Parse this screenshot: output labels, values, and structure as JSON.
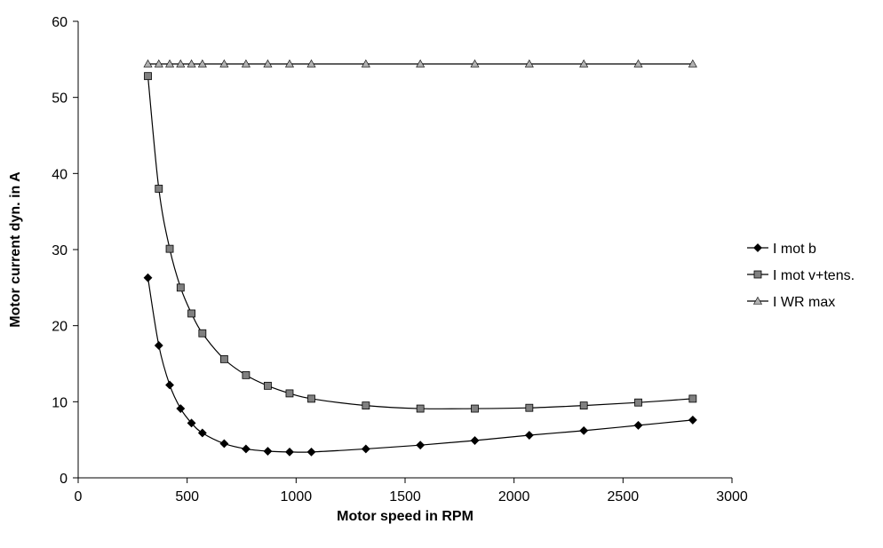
{
  "chart_data": {
    "type": "line",
    "title": "",
    "xlabel": "Motor speed in RPM",
    "ylabel": "Motor current dyn. in A",
    "xlim": [
      0,
      3000
    ],
    "ylim": [
      0,
      60
    ],
    "x_ticks": [
      0,
      500,
      1000,
      1500,
      2000,
      2500,
      3000
    ],
    "y_ticks": [
      0,
      10,
      20,
      30,
      40,
      50,
      60
    ],
    "grid": false,
    "legend_position": "right",
    "series": [
      {
        "name": "I mot b",
        "marker": "diamond",
        "color": "#000000",
        "x": [
          320,
          370,
          420,
          470,
          520,
          570,
          670,
          770,
          870,
          970,
          1070,
          1320,
          1570,
          1820,
          2070,
          2320,
          2570,
          2820
        ],
        "y": [
          26.3,
          17.4,
          12.2,
          9.1,
          7.2,
          5.9,
          4.5,
          3.8,
          3.5,
          3.4,
          3.4,
          3.8,
          4.3,
          4.9,
          5.6,
          6.2,
          6.9,
          7.6
        ]
      },
      {
        "name": "I mot v+tens.",
        "marker": "square",
        "color": "#808080",
        "x": [
          320,
          370,
          420,
          470,
          520,
          570,
          670,
          770,
          870,
          970,
          1070,
          1320,
          1570,
          1820,
          2070,
          2320,
          2570,
          2820
        ],
        "y": [
          52.8,
          38.0,
          30.1,
          25.0,
          21.6,
          19.0,
          15.6,
          13.5,
          12.1,
          11.1,
          10.4,
          9.5,
          9.1,
          9.1,
          9.2,
          9.5,
          9.9,
          10.4
        ]
      },
      {
        "name": "I WR max",
        "marker": "triangle",
        "color": "#b0b0b0",
        "x": [
          320,
          370,
          420,
          470,
          520,
          570,
          670,
          770,
          870,
          970,
          1070,
          1320,
          1570,
          1820,
          2070,
          2320,
          2570,
          2820
        ],
        "y": [
          54.4,
          54.4,
          54.4,
          54.4,
          54.4,
          54.4,
          54.4,
          54.4,
          54.4,
          54.4,
          54.4,
          54.4,
          54.4,
          54.4,
          54.4,
          54.4,
          54.4,
          54.4
        ]
      }
    ]
  }
}
